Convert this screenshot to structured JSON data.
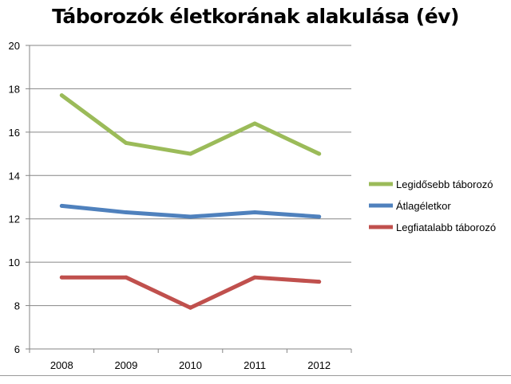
{
  "chart_data": {
    "type": "line",
    "title": "Táborozók életkorának alakulása (év)",
    "xlabel": "",
    "ylabel": "",
    "categories": [
      "2008",
      "2009",
      "2010",
      "2011",
      "2012"
    ],
    "ylim": [
      6,
      20
    ],
    "yticks": [
      6,
      8,
      10,
      12,
      14,
      16,
      18,
      20
    ],
    "grid": true,
    "legend_position": "right",
    "series": [
      {
        "name": "Legidősebb táborozó",
        "color": "#9bbb59",
        "values": [
          17.7,
          15.5,
          15.0,
          16.4,
          15.0
        ]
      },
      {
        "name": "Átlagéletkor",
        "color": "#4f81bd",
        "values": [
          12.6,
          12.3,
          12.1,
          12.3,
          12.1
        ]
      },
      {
        "name": "Legfiatalabb táborozó",
        "color": "#c0504d",
        "values": [
          9.3,
          9.3,
          7.9,
          9.3,
          9.1
        ]
      }
    ]
  }
}
